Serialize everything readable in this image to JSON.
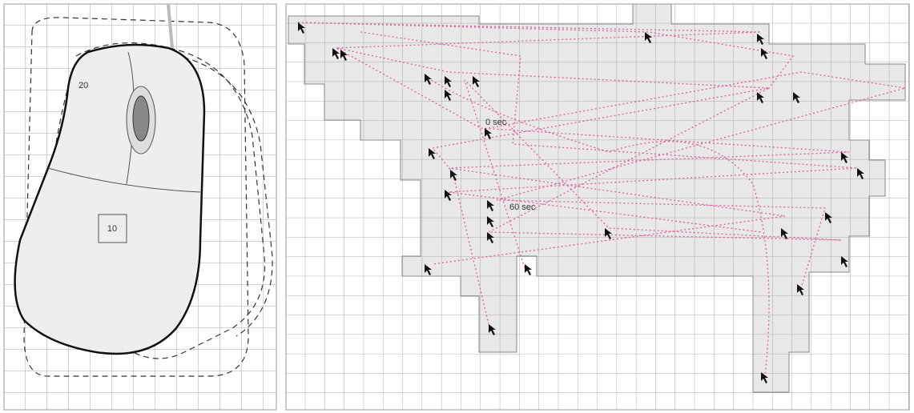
{
  "mouse": {
    "labels": [
      "20",
      "10"
    ]
  },
  "trace": {
    "labels": [
      "0 sec",
      "60 sec"
    ]
  }
}
